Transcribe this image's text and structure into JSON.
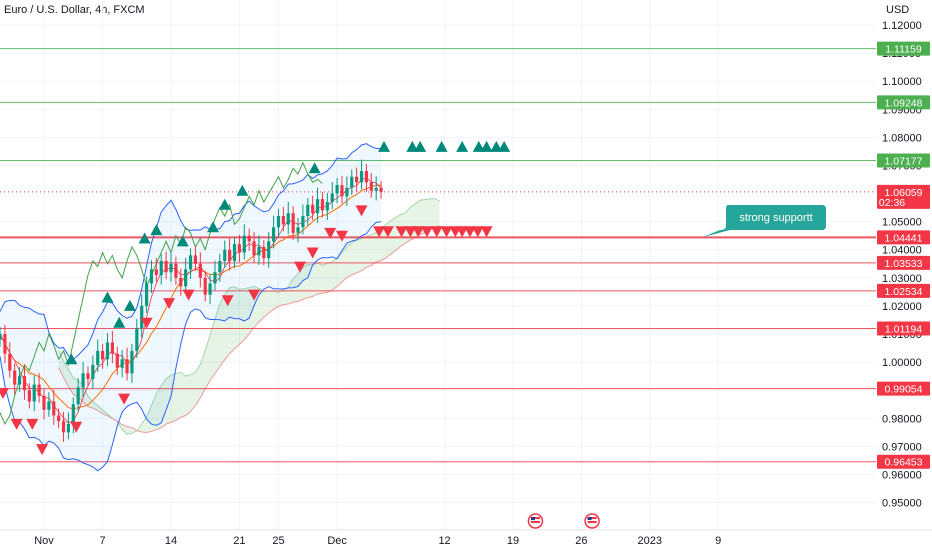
{
  "chart_data": {
    "type": "candlestick",
    "title": "Euro / U.S. Dollar, 4h, FXCM",
    "currency": "USD",
    "ylim": [
      0.9445,
      1.1225
    ],
    "price_ticks": [
      "1.12000",
      "1.11000",
      "1.10000",
      "1.09000",
      "1.08000",
      "1.07000",
      "1.05000",
      "1.04000",
      "1.03000",
      "1.02000",
      "1.01000",
      "1.00000",
      "0.99000",
      "0.98000",
      "0.97000",
      "0.96000",
      "0.95000"
    ],
    "date_ticks": [
      {
        "label": "Nov",
        "day": 1
      },
      {
        "label": "7",
        "day": 7
      },
      {
        "label": "14",
        "day": 14
      },
      {
        "label": "21",
        "day": 21
      },
      {
        "label": "25",
        "day": 25
      },
      {
        "label": "Dec",
        "day": 31
      },
      {
        "label": "12",
        "day": 42
      },
      {
        "label": "19",
        "day": 49
      },
      {
        "label": "26",
        "day": 56
      },
      {
        "label": "2023",
        "day": 63
      },
      {
        "label": "9",
        "day": 70
      }
    ],
    "horizontal_levels": [
      {
        "price": 1.11159,
        "label": "1.11159",
        "color": "#4caf50"
      },
      {
        "price": 1.09248,
        "label": "1.09248",
        "color": "#4caf50"
      },
      {
        "price": 1.07177,
        "label": "1.07177",
        "color": "#4caf50"
      },
      {
        "price": 1.04441,
        "label": "1.04441",
        "color": "#f23645"
      },
      {
        "price": 1.03533,
        "label": "1.03533",
        "color": "#f23645"
      },
      {
        "price": 1.02534,
        "label": "1.02534",
        "color": "#f23645"
      },
      {
        "price": 1.01194,
        "label": "1.01194",
        "color": "#f23645"
      },
      {
        "price": 0.99054,
        "label": "0.99054",
        "color": "#f23645"
      },
      {
        "price": 0.96453,
        "label": "0.96453",
        "color": "#f23645"
      }
    ],
    "current_price": {
      "price": 1.06059,
      "label": "1.06059",
      "countdown": "02:36",
      "color": "#f23645"
    },
    "annotation": {
      "text": "strong supportt",
      "color": "#26a69a"
    },
    "close_series": {
      "name": "EURUSD",
      "start_day": -3.5,
      "step_days": 0.5,
      "values": [
        1.01,
        1.003,
        0.997,
        0.992,
        0.995,
        0.99,
        0.986,
        0.992,
        0.988,
        0.983,
        0.986,
        0.981,
        0.979,
        0.975,
        0.978,
        0.985,
        0.991,
        0.996,
        0.994,
        0.999,
        1.004,
        1.001,
        1.007,
        1.003,
        0.998,
        1.001,
        0.996,
        1.004,
        1.012,
        1.02,
        1.028,
        1.033,
        1.031,
        1.036,
        1.032,
        1.035,
        1.03,
        1.027,
        1.033,
        1.038,
        1.035,
        1.03,
        1.024,
        1.028,
        1.032,
        1.036,
        1.04,
        1.036,
        1.042,
        1.039,
        1.045,
        1.043,
        1.038,
        1.041,
        1.037,
        1.043,
        1.048,
        1.052,
        1.049,
        1.053,
        1.046,
        1.048,
        1.052,
        1.056,
        1.053,
        1.058,
        1.054,
        1.057,
        1.06,
        1.063,
        1.059,
        1.062,
        1.066,
        1.064,
        1.068,
        1.064,
        1.061,
        1.062,
        1.0606
      ]
    },
    "up_markers_day": [
      3.8,
      7.5,
      8.7,
      9.8,
      11.3,
      12.5,
      15.2,
      18.3,
      19.5,
      21.3,
      28.7,
      35.8,
      38.7,
      39.5,
      41.7,
      43.8,
      45.5,
      46.3,
      47.3,
      48.1
    ],
    "down_markers_day": [
      -3.2,
      -1.8,
      -0.2,
      0.8,
      4.3,
      9.2,
      11.5,
      13.8,
      15.8,
      19.8,
      22.5,
      27.2,
      28.5,
      30.3,
      31.5,
      33.5,
      35.3,
      36.2,
      37.6,
      38.5,
      39.3,
      40.2,
      41.2,
      42.2,
      43.1,
      43.8,
      44.6,
      45.4,
      46.3
    ]
  }
}
